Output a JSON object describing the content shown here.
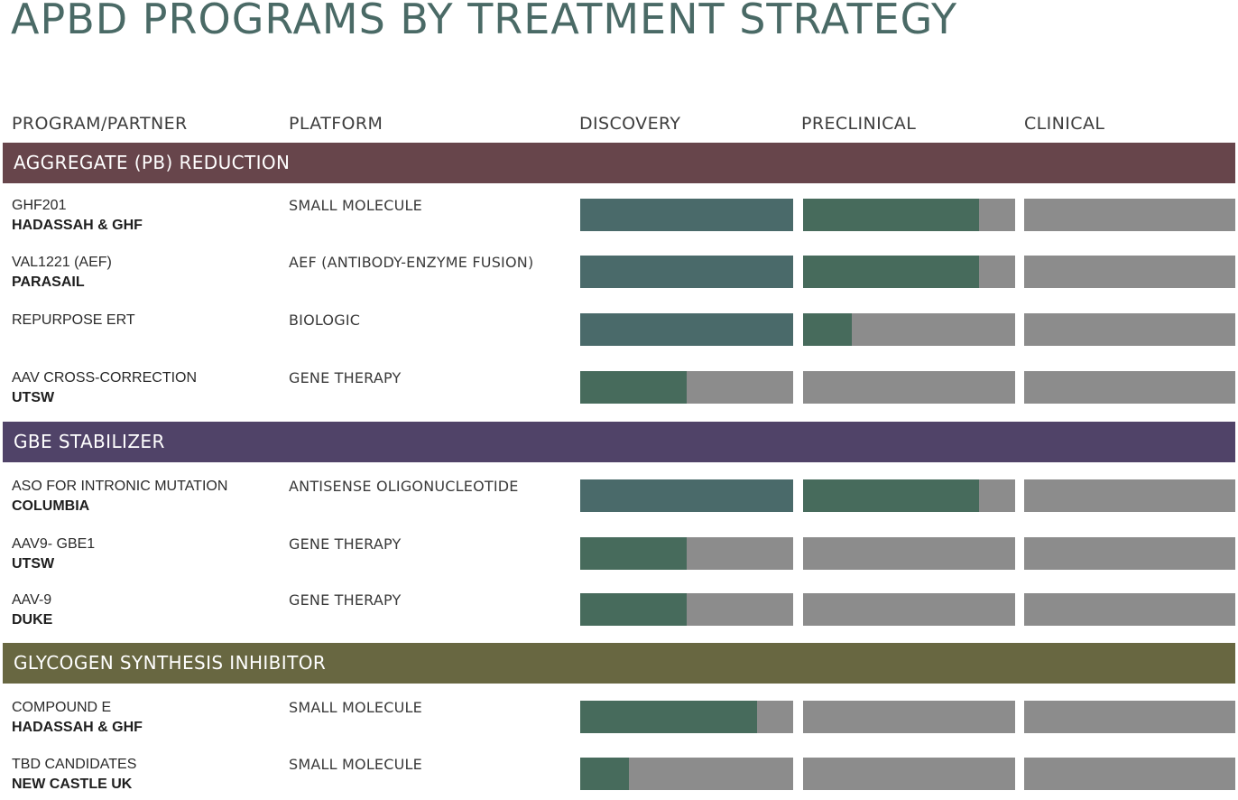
{
  "title": "APBD PROGRAMS BY TREATMENT STRATEGY",
  "columns": [
    "PROGRAM/PARTNER",
    "PLATFORM",
    "DISCOVERY",
    "PRECLINICAL",
    "CLINICAL"
  ],
  "colors": {
    "discovery_full": "#4a6a6a",
    "progress_fill": "#476b5c",
    "track": "#8c8c8c"
  },
  "chart_data": {
    "type": "bar",
    "stages": [
      "DISCOVERY",
      "PRECLINICAL",
      "CLINICAL"
    ],
    "groups": [
      {
        "name": "AGGREGATE (PB) REDUCTION",
        "color": "#67454b",
        "programs": [
          {
            "program": "GHF201",
            "partner": "HADASSAH & GHF",
            "platform": "SMALL MOLECULE",
            "progress": [
              1.0,
              0.83,
              0
            ]
          },
          {
            "program": "VAL1221 (AEF)",
            "partner": "PARASAIL",
            "platform": "AEF (ANTIBODY-ENZYME FUSION)",
            "progress": [
              1.0,
              0.83,
              0
            ]
          },
          {
            "program": "REPURPOSE ERT",
            "partner": "",
            "platform": "BIOLOGIC",
            "progress": [
              1.0,
              0.23,
              0
            ]
          },
          {
            "program": "AAV CROSS-CORRECTION",
            "partner": "UTSW",
            "platform": "GENE THERAPY",
            "progress": [
              0.5,
              0,
              0
            ]
          }
        ]
      },
      {
        "name": "GBE STABILIZER",
        "color": "#504368",
        "programs": [
          {
            "program": "ASO FOR INTRONIC MUTATION",
            "partner": "COLUMBIA",
            "platform": "ANTISENSE OLIGONUCLEOTIDE",
            "progress": [
              1.0,
              0.83,
              0
            ]
          },
          {
            "program": "AAV9- GBE1",
            "partner": "UTSW",
            "platform": "GENE THERAPY",
            "progress": [
              0.5,
              0,
              0
            ]
          },
          {
            "program": "AAV-9",
            "partner": "DUKE",
            "platform": "GENE THERAPY",
            "progress": [
              0.5,
              0,
              0
            ]
          }
        ]
      },
      {
        "name": "GLYCOGEN SYNTHESIS INHIBITOR",
        "color": "#686741",
        "programs": [
          {
            "program": "COMPOUND E",
            "partner": "HADASSAH & GHF",
            "platform": "SMALL MOLECULE",
            "progress": [
              0.83,
              0,
              0
            ]
          },
          {
            "program": "TBD CANDIDATES",
            "partner": "NEW CASTLE UK",
            "platform": "SMALL MOLECULE",
            "progress": [
              0.23,
              0,
              0
            ]
          }
        ]
      }
    ]
  }
}
